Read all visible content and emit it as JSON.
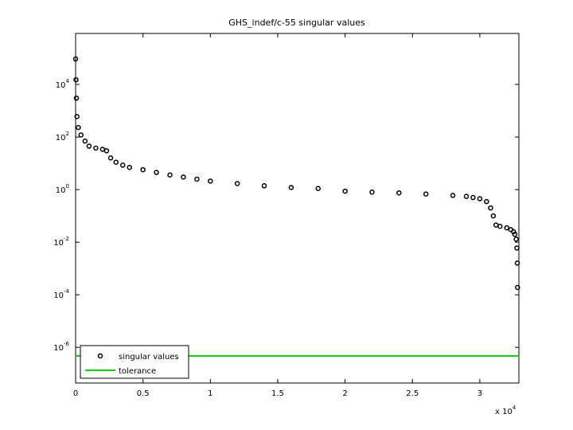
{
  "chart_data": {
    "type": "scatter",
    "title": "GHS_indef/c-55 singular values",
    "x_multiplier": "x 10^4",
    "yscale": "log",
    "legend": "lower left",
    "xlim": [
      0,
      32900
    ],
    "ylim": [
      4.4e-08,
      870000
    ],
    "xticks": [
      0,
      {
        "value": 5000,
        "label": "0.5"
      },
      {
        "value": 10000,
        "label": "1"
      },
      {
        "value": 15000,
        "label": "1.5"
      },
      {
        "value": 20000,
        "label": "2"
      },
      {
        "value": 25000,
        "label": "2.5"
      },
      {
        "value": 30000,
        "label": "3"
      }
    ],
    "yticks": [
      {
        "value": 1e-06,
        "label": "10^-6"
      },
      {
        "value": 0.0001,
        "label": "10^-4"
      },
      {
        "value": 0.01,
        "label": "10^-2"
      },
      {
        "value": 1,
        "label": "10^0"
      },
      {
        "value": 100,
        "label": "10^2"
      },
      {
        "value": 10000,
        "label": "10^4"
      }
    ],
    "series": [
      {
        "name": "singular values",
        "color": "#000000",
        "style": "markers",
        "x": [
          1,
          30,
          60,
          100,
          200,
          400,
          700,
          1000,
          1500,
          2000,
          2300,
          2600,
          3000,
          3500,
          4000,
          5000,
          6000,
          7000,
          8000,
          9000,
          10000,
          12000,
          14000,
          16000,
          18000,
          20000,
          22000,
          24000,
          26000,
          28000,
          29000,
          29500,
          30000,
          30500,
          30800,
          31000,
          31200,
          31500,
          32000,
          32300,
          32500,
          32600,
          32700,
          32750,
          32780,
          32800
        ],
        "values": [
          93000,
          15000,
          3000,
          600,
          230,
          120,
          70,
          45,
          38,
          34,
          30,
          16,
          11,
          8.5,
          7,
          5.7,
          4.5,
          3.6,
          3,
          2.5,
          2.1,
          1.7,
          1.4,
          1.2,
          1.1,
          0.87,
          0.8,
          0.75,
          0.68,
          0.6,
          0.55,
          0.5,
          0.45,
          0.35,
          0.2,
          0.1,
          0.045,
          0.04,
          0.035,
          0.03,
          0.025,
          0.02,
          0.013,
          0.006,
          0.0016,
          0.00019
        ]
      },
      {
        "name": "tolerance",
        "color": "#00e000",
        "style": "line",
        "x": [
          0,
          32900
        ],
        "values": [
          4.7e-07,
          4.7e-07
        ]
      }
    ]
  }
}
